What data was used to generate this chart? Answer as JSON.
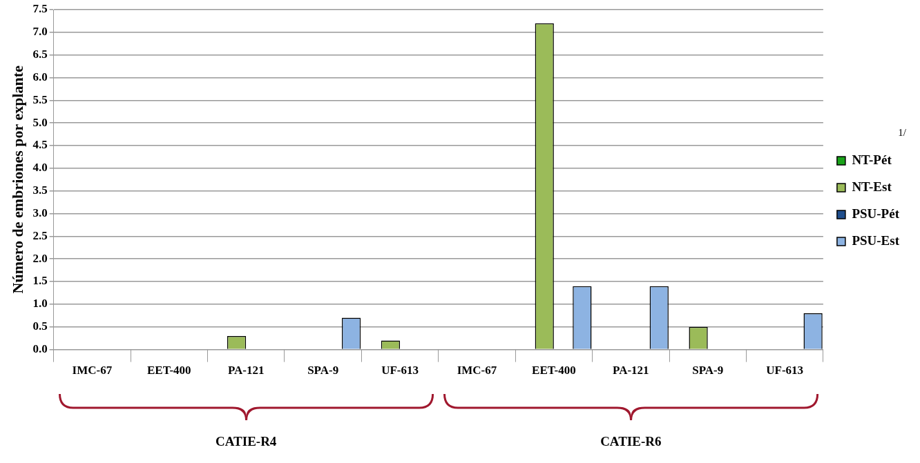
{
  "chart_data": {
    "type": "bar",
    "ylabel": "Número de embriones por explante",
    "legend_title": "1/",
    "categories": [
      "IMC-67",
      "EET-400",
      "PA-121",
      "SPA-9",
      "UF-613",
      "IMC-67",
      "EET-400",
      "PA-121",
      "SPA-9",
      "UF-613"
    ],
    "series": [
      {
        "name": "NT-Pét",
        "color": "#1aa31a",
        "values": [
          0,
          0,
          0,
          0,
          0,
          0,
          0,
          0,
          0,
          0
        ]
      },
      {
        "name": "NT-Est",
        "color": "#9bbb59",
        "values": [
          0,
          0,
          0.3,
          0,
          0.2,
          0,
          7.2,
          0,
          0.5,
          0
        ]
      },
      {
        "name": "PSU-Pét",
        "color": "#1f4e8c",
        "values": [
          0,
          0,
          0,
          0,
          0,
          0,
          0,
          0,
          0,
          0
        ]
      },
      {
        "name": "PSU-Est",
        "color": "#8db3e2",
        "values": [
          0,
          0,
          0,
          0.7,
          0,
          0,
          1.4,
          1.4,
          0,
          0.8
        ]
      }
    ],
    "ylim": [
      0,
      7.5
    ],
    "yticks": [
      {
        "value": 0,
        "label": "0.0"
      },
      {
        "value": 0.5,
        "label": "0.5"
      },
      {
        "value": 1,
        "label": "1.0"
      },
      {
        "value": 1.5,
        "label": "1.5"
      },
      {
        "value": 2,
        "label": "2.0"
      },
      {
        "value": 2.5,
        "label": "2.5"
      },
      {
        "value": 3,
        "label": "3.0"
      },
      {
        "value": 3.5,
        "label": "3.5"
      },
      {
        "value": 4,
        "label": "4.0"
      },
      {
        "value": 4.5,
        "label": "4.5"
      },
      {
        "value": 5,
        "label": "5.0"
      },
      {
        "value": 5.5,
        "label": "5.5"
      },
      {
        "value": 6,
        "label": "6.0"
      },
      {
        "value": 6.5,
        "label": "6.5"
      },
      {
        "value": 7,
        "label": "7.0"
      },
      {
        "value": 7.5,
        "label": "7.5"
      }
    ],
    "grid": "y",
    "legend": "right",
    "annotations": [
      "CATIE-R4",
      "CATIE-R6"
    ]
  }
}
